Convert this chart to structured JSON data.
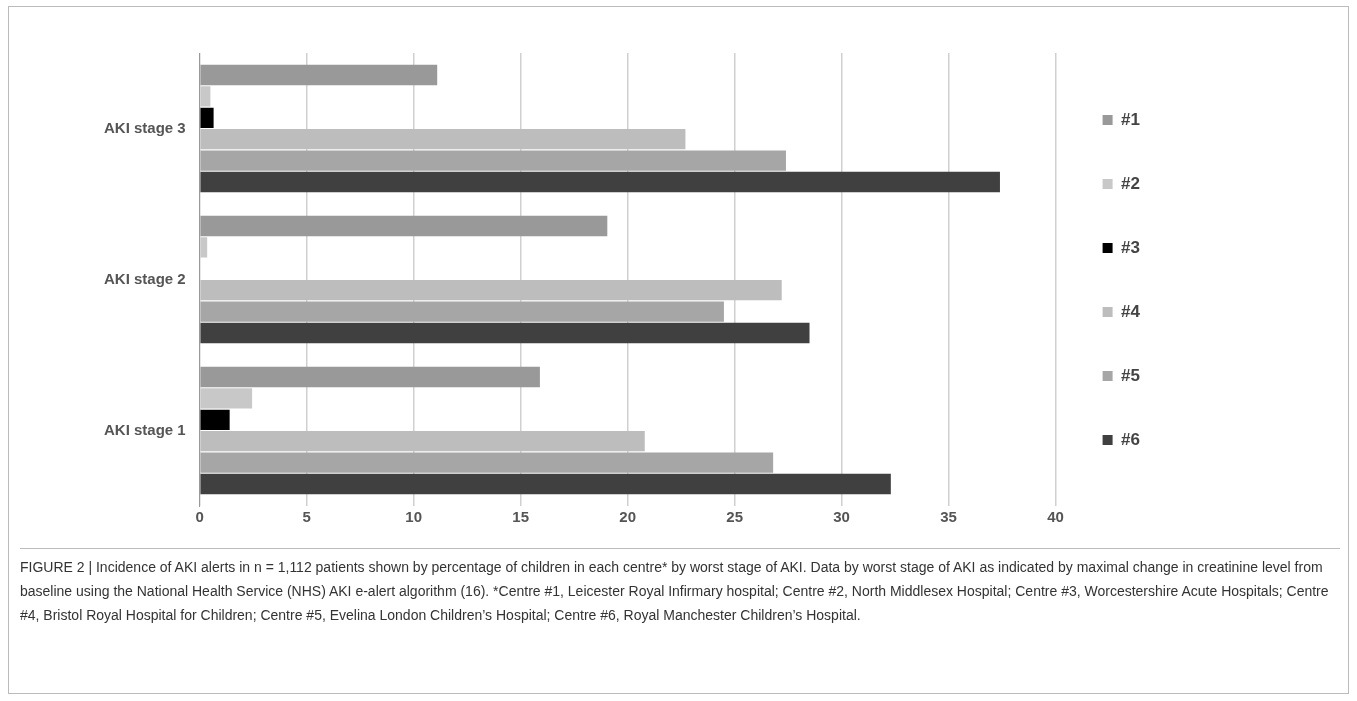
{
  "chart_data": {
    "type": "bar",
    "orientation": "horizontal",
    "categories": [
      "AKI stage 3",
      "AKI stage 2",
      "AKI stage 1"
    ],
    "series": [
      {
        "name": "#1",
        "color": "#999999",
        "values": [
          11.1,
          19.05,
          15.9
        ]
      },
      {
        "name": "#2",
        "color": "#c8c8c8",
        "values": [
          0.5,
          0.35,
          2.45
        ]
      },
      {
        "name": "#3",
        "color": "#000000",
        "values": [
          0.65,
          0,
          1.4
        ]
      },
      {
        "name": "#4",
        "color": "#bdbdbd",
        "values": [
          22.7,
          27.2,
          20.8
        ]
      },
      {
        "name": "#5",
        "color": "#a6a6a6",
        "values": [
          27.4,
          24.5,
          26.8
        ]
      },
      {
        "name": "#6",
        "color": "#404040",
        "values": [
          37.4,
          28.5,
          32.3
        ]
      }
    ],
    "xlim": [
      0,
      40
    ],
    "xticks": [
      0,
      5,
      10,
      15,
      20,
      25,
      30,
      35,
      40
    ],
    "grid": "x",
    "legend": "right",
    "annotations": [
      "FIGURE 2 | Incidence of AKI alerts in n = 1,112 patients shown by percentage of children in each centre* by worst stage of AKI. Data by worst stage of AKI as indicated by maximal change in creatinine level from baseline using the National Health Service (NHS) AKI e-alert algorithm (16). *Centre #1, Leicester Royal Infirmary hospital; Centre #2, North Middlesex Hospital; Centre #3, Worcestershire Acute Hospitals; Centre #4, Bristol Royal Hospital for Children; Centre #5, Evelina London Children’s Hospital; Centre #6, Royal Manchester Children’s Hospital."
    ]
  }
}
